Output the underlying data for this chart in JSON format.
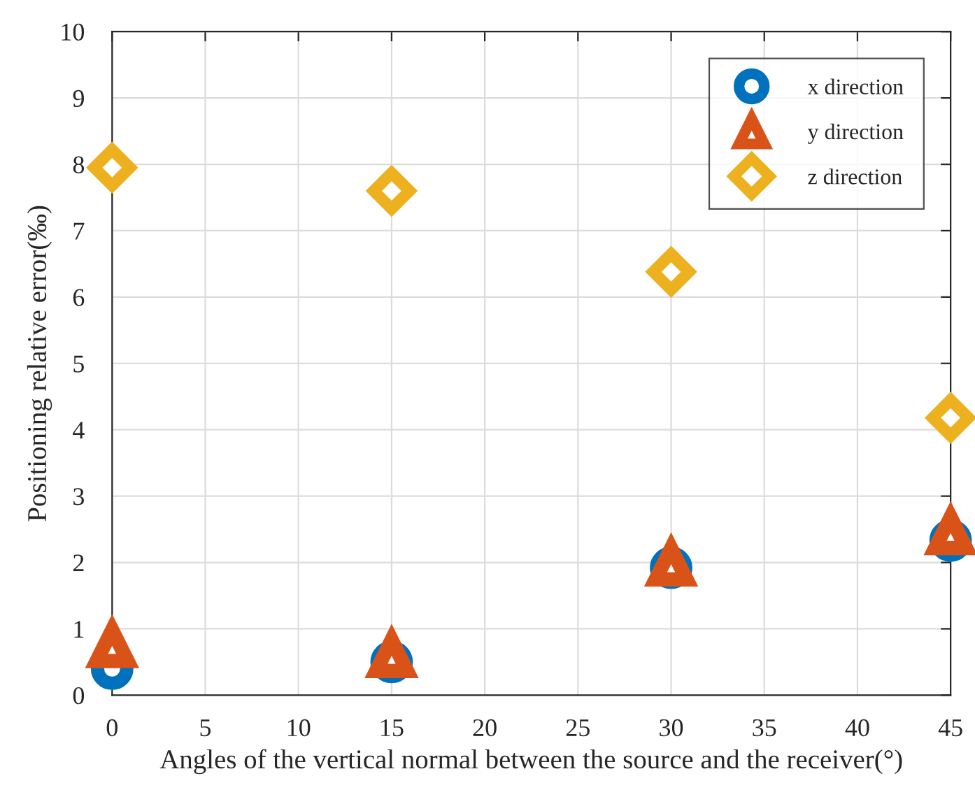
{
  "chart_data": {
    "type": "scatter",
    "xlabel": "Angles of the vertical normal between the source and the receiver(°)",
    "ylabel": "Positioning relative error(‰)",
    "x": [
      0,
      15,
      30,
      45
    ],
    "series": [
      {
        "name": "x direction",
        "color": "#0072bd",
        "marker": "circle",
        "values": [
          0.4,
          0.5,
          1.92,
          2.33
        ]
      },
      {
        "name": "y direction",
        "color": "#d95319",
        "marker": "triangle",
        "values": [
          0.75,
          0.6,
          1.98,
          2.45
        ]
      },
      {
        "name": "z direction",
        "color": "#edb120",
        "marker": "diamond",
        "values": [
          7.95,
          7.6,
          6.38,
          4.18
        ]
      }
    ],
    "xlim": [
      0,
      45
    ],
    "xticks": [
      0,
      5,
      10,
      15,
      20,
      25,
      30,
      35,
      40,
      45
    ],
    "ylim": [
      0,
      10
    ],
    "yticks": [
      0,
      1,
      2,
      3,
      4,
      5,
      6,
      7,
      8,
      9,
      10
    ],
    "grid": true,
    "legend": "top right"
  }
}
